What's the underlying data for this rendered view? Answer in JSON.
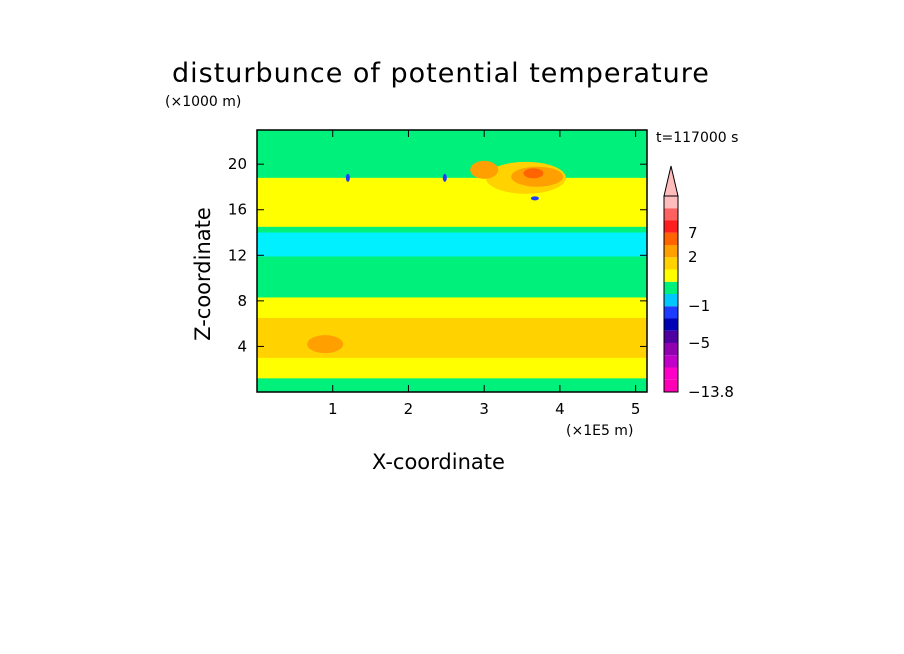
{
  "chart_data": {
    "type": "heatmap",
    "title": "disturbunce of potential temperature",
    "xlabel": "X-coordinate",
    "ylabel": "Z-coordinate",
    "x_unit": "(×1E5 m)",
    "y_unit": "(×1000 m)",
    "time_label": "t=117000 s",
    "xlim": [
      0,
      5.15
    ],
    "ylim": [
      0,
      23
    ],
    "x_ticks": [
      "1",
      "2",
      "3",
      "4",
      "5"
    ],
    "x_tick_values": [
      1,
      2,
      3,
      4,
      5
    ],
    "y_ticks": [
      "4",
      "8",
      "12",
      "16",
      "20"
    ],
    "y_tick_values": [
      4,
      8,
      12,
      16,
      20
    ],
    "colorbar": {
      "labels": [
        "7",
        "2",
        "−1",
        "−5",
        "−13.8"
      ],
      "label_levels": [
        7,
        2,
        -1,
        -5,
        -13.8
      ],
      "colors": [
        "#ff00b4",
        "#ff00c8",
        "#c000c8",
        "#9000b0",
        "#5000a0",
        "#0000b4",
        "#1e3cff",
        "#00c8ff",
        "#00f07c",
        "#ffff00",
        "#ffd200",
        "#ffa000",
        "#ff6400",
        "#ff1e1e",
        "#ff6060",
        "#ffbcbc"
      ],
      "extend_max": true
    }
  }
}
